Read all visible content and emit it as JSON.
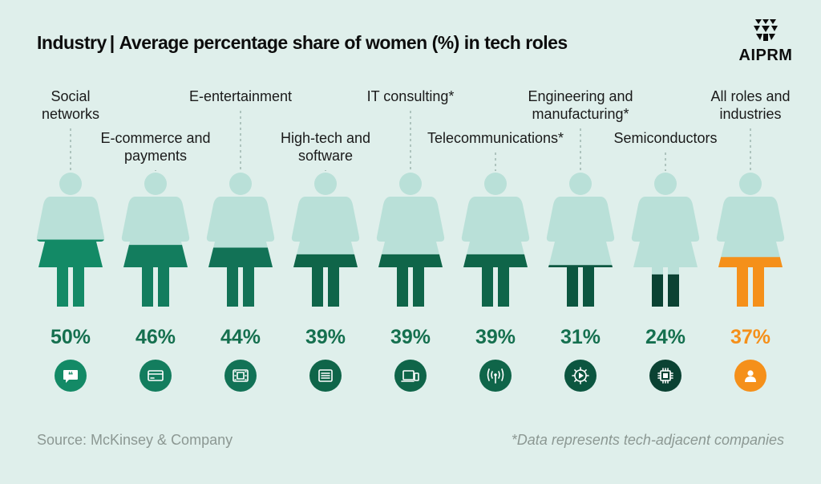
{
  "header": {
    "title_lead": "Industry",
    "title_sep": "|",
    "title_main": "Average percentage share of women (%) in tech roles",
    "brand": "AIPRM"
  },
  "footer": {
    "source": "Source: McKinsey & Company",
    "note": "*Data represents tech-adjacent companies"
  },
  "colors": {
    "background": "#dfefeb",
    "silhouette": "#b9e0d8",
    "highlight": "#f5901a",
    "icon_fg": "#ffffff",
    "fill_shades": [
      "#138a66",
      "#137d5e",
      "#127256",
      "#0f6549",
      "#0f6549",
      "#0f6549",
      "#0c5640",
      "#0b4233",
      "#f5901a"
    ]
  },
  "chart_data": {
    "type": "pictograph",
    "categories": [
      "Social networks",
      "E-commerce and payments",
      "E-entertainment",
      "High-tech and software",
      "IT consulting*",
      "Telecommunications*",
      "Engineering and manufacturing*",
      "Semiconductors",
      "All roles and industries"
    ],
    "label_lines": [
      [
        "Social",
        "networks"
      ],
      [
        "E-commerce and",
        "payments"
      ],
      [
        "E-entertainment"
      ],
      [
        "High-tech and",
        "software"
      ],
      [
        "IT consulting*"
      ],
      [
        "Telecommunications*"
      ],
      [
        "Engineering and",
        "manufacturing*"
      ],
      [
        "Semiconductors"
      ],
      [
        "All roles and",
        "industries"
      ]
    ],
    "values": [
      50,
      46,
      44,
      39,
      39,
      39,
      31,
      24,
      37
    ],
    "value_labels": [
      "50%",
      "46%",
      "44%",
      "39%",
      "39%",
      "39%",
      "31%",
      "24%",
      "37%"
    ],
    "icons": [
      "chat-bubble-icon",
      "credit-card-icon",
      "film-icon",
      "document-icon",
      "laptop-icon",
      "antenna-icon",
      "gear-icon",
      "chip-icon",
      "person-icon"
    ],
    "ylim": [
      0,
      100
    ]
  }
}
